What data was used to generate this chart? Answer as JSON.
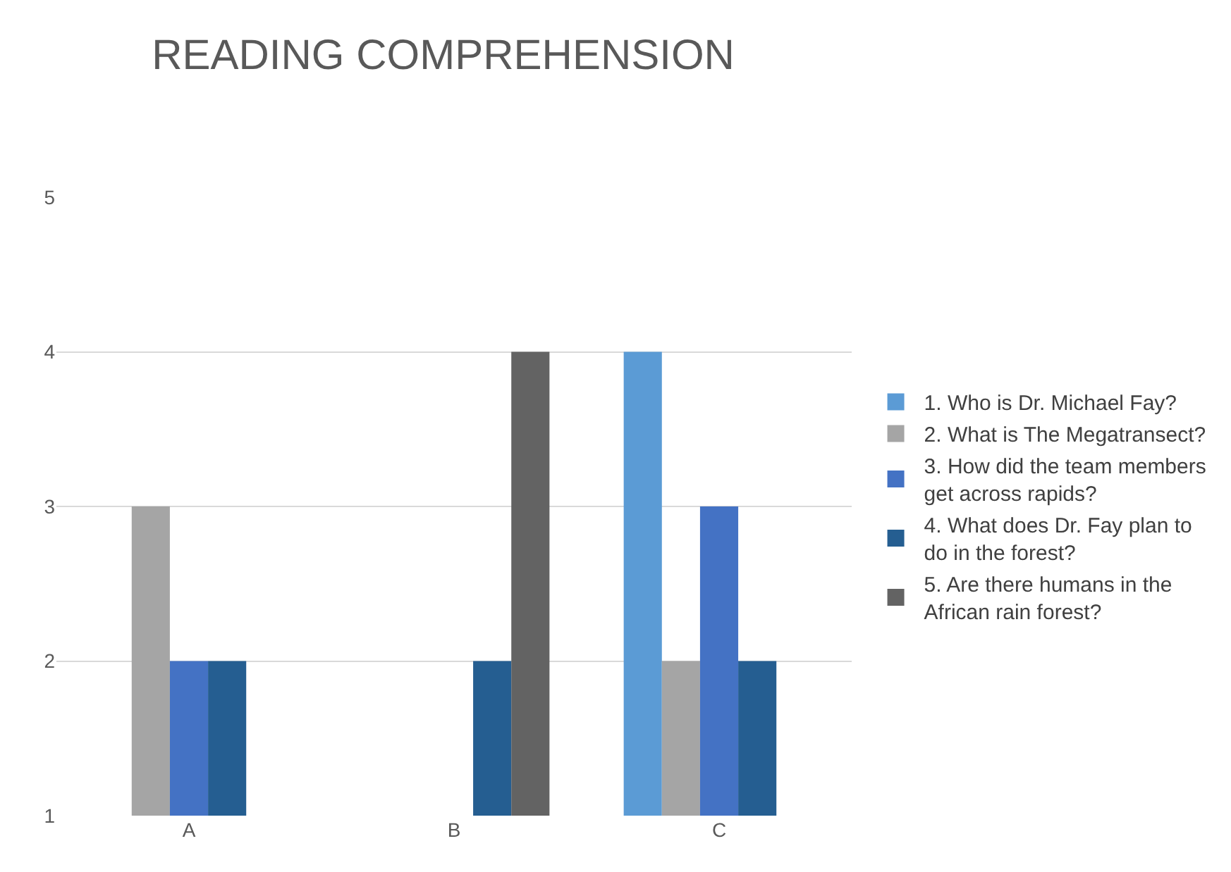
{
  "chart_data": {
    "type": "bar",
    "title": "READING COMPREHENSION",
    "categories": [
      "A",
      "B",
      "C"
    ],
    "series": [
      {
        "name": "1. Who is Dr. Michael Fay?",
        "color": "#5b9bd5",
        "values": [
          1,
          1,
          4
        ]
      },
      {
        "name": "2. What is The Megatransect?",
        "color": "#a5a5a5",
        "values": [
          3,
          1,
          2
        ]
      },
      {
        "name": "3. How did the team members get across rapids?",
        "color": "#4472c4",
        "values": [
          2,
          1,
          3
        ]
      },
      {
        "name": "4. What does Dr. Fay plan to do in the forest?",
        "color": "#255e91",
        "values": [
          2,
          2,
          2
        ]
      },
      {
        "name": "5. Are there humans in the African rain forest?",
        "color": "#636363",
        "values": [
          1,
          4,
          1
        ]
      }
    ],
    "ylim": [
      1,
      5
    ],
    "yticks": [
      1,
      2,
      3,
      4,
      5
    ],
    "grid": "y",
    "legend": "right"
  }
}
